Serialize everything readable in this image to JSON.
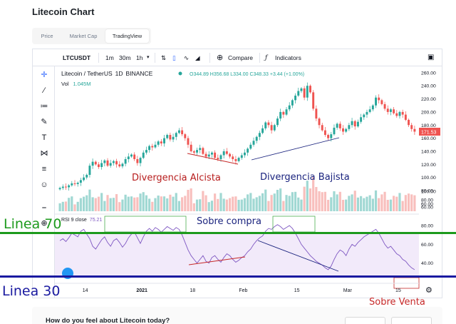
{
  "page": {
    "title": "Litecoin Chart",
    "tabs": [
      "Price",
      "Market Cap",
      "TradingView"
    ],
    "active_tab": "TradingView"
  },
  "toolbar": {
    "symbol": "LTCUSDT",
    "intervals": [
      "1m",
      "30m",
      "1h"
    ],
    "compare_label": "Compare",
    "indicators_label": "Indicators"
  },
  "legend": {
    "pair": "Litecoin / TetherUS",
    "interval": "1D",
    "exchange": "BINANCE",
    "ohlc": "O344.89 H356.68 L334.00 C348.33 +3.44 (+1.00%)",
    "volume_label": "Vol",
    "volume_value": "1.045M",
    "last_price": "171.53"
  },
  "rsi": {
    "label": "RSI 9 close",
    "value": "75.21"
  },
  "annotations": {
    "divergencia_alcista": "Divergencia Alcista",
    "divergencia_bajista": "Divergencia Bajista",
    "sobre_compra": "Sobre compra",
    "sobre_venta": "Sobre Venta",
    "linea_70": "Linea 70",
    "linea_30": "Linea 30"
  },
  "colors": {
    "up": "#26a69a",
    "down": "#ef5350",
    "rsi_line": "#7e57c2",
    "rsi_band": "#e9dcf7",
    "line70": "#1d9a1d",
    "line30": "#1a1aa0",
    "label_red": "#b71c1c",
    "label_blue": "#1a237e"
  },
  "bottom": {
    "question": "How do you feel about Litecoin today?"
  },
  "chart_data": {
    "type": "candlestick",
    "x_ticks": [
      "14",
      "2021",
      "18",
      "Feb",
      "15",
      "Mar",
      "15"
    ],
    "y_ticks": [
      "260.00",
      "240.00",
      "220.00",
      "200.00",
      "180.00",
      "160.00",
      "140.00",
      "120.00",
      "100.00",
      "80.00",
      "60.00"
    ],
    "volume_ticks": [
      "100.00",
      "80.00",
      "60.00"
    ],
    "rsi_ticks": [
      "80.00",
      "60.00",
      "40.00"
    ],
    "rsi_band": [
      30,
      70
    ],
    "closes": [
      84,
      86,
      85,
      88,
      91,
      90,
      92,
      96,
      100,
      104,
      118,
      124,
      120,
      116,
      122,
      126,
      118,
      122,
      125,
      120,
      117,
      121,
      128,
      132,
      135,
      128,
      122,
      130,
      138,
      142,
      148,
      146,
      150,
      155,
      152,
      160,
      165,
      158,
      162,
      168,
      172,
      166,
      160,
      150,
      140,
      138,
      142,
      145,
      136,
      132,
      135,
      138,
      130,
      128,
      134,
      140,
      136,
      132,
      128,
      125,
      130,
      134,
      138,
      144,
      150,
      156,
      162,
      168,
      175,
      184,
      180,
      172,
      180,
      190,
      200,
      196,
      204,
      210,
      218,
      225,
      232,
      236,
      222,
      240,
      230,
      205,
      190,
      180,
      172,
      165,
      160,
      166,
      176,
      182,
      175,
      170,
      174,
      180,
      186,
      178,
      185,
      192,
      196,
      200,
      204,
      210,
      222,
      218,
      212,
      205,
      200,
      204,
      198,
      194,
      200,
      196,
      188,
      180,
      174,
      170
    ],
    "rsi": [
      64,
      66,
      63,
      67,
      72,
      70,
      68,
      74,
      76,
      71,
      66,
      58,
      55,
      60,
      65,
      68,
      62,
      58,
      64,
      66,
      62,
      57,
      61,
      67,
      71,
      73,
      67,
      61,
      68,
      74,
      77,
      74,
      78,
      76,
      73,
      76,
      79,
      77,
      75,
      78,
      76,
      70,
      62,
      54,
      48,
      44,
      40,
      44,
      48,
      42,
      40,
      46,
      48,
      44,
      41,
      46,
      50,
      48,
      44,
      41,
      43,
      46,
      48,
      52,
      55,
      60,
      64,
      67,
      69,
      74,
      77,
      76,
      79,
      81,
      79,
      76,
      78,
      80,
      77,
      72,
      66,
      60,
      56,
      52,
      48,
      45,
      42,
      40,
      38,
      35,
      33,
      37,
      44,
      50,
      54,
      52,
      48,
      55,
      60,
      58,
      62,
      65,
      68,
      70,
      72,
      74,
      76,
      72,
      66,
      60,
      56,
      58,
      54,
      50,
      48,
      44,
      42,
      38,
      35,
      33
    ]
  }
}
